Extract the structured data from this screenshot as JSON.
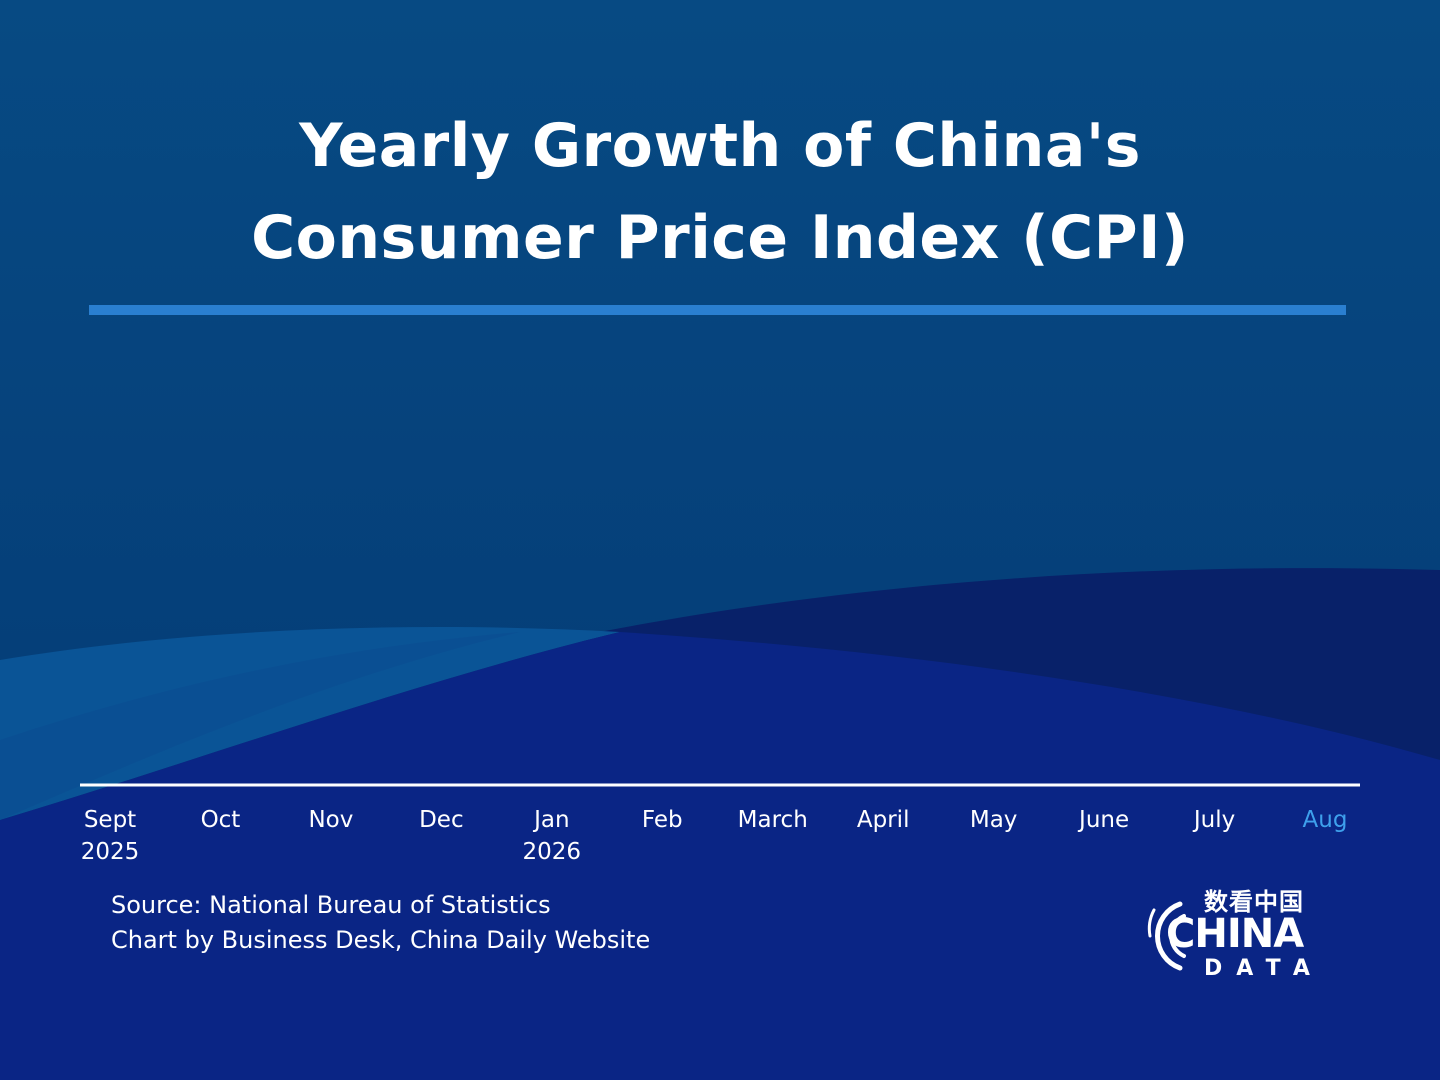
{
  "title": {
    "line1": "Yearly Growth of China's",
    "line2": "Consumer Price Index (CPI)"
  },
  "colors": {
    "background_top": "#074a83",
    "background_bottom": "#0a2585",
    "title_rule": "#2a7fd0",
    "axis_line": "#ffffff",
    "tick_label": "#ffffff",
    "tick_label_highlight": "#3ea0ec"
  },
  "chart_data": {
    "type": "line",
    "title": "Yearly Growth of China's Consumer Price Index (CPI)",
    "xlabel": "",
    "ylabel": "",
    "categories": [
      [
        "Sept",
        "2025"
      ],
      [
        "Oct"
      ],
      [
        "Nov"
      ],
      [
        "Dec"
      ],
      [
        "Jan",
        "2026"
      ],
      [
        "Feb"
      ],
      [
        "March"
      ],
      [
        "April"
      ],
      [
        "May"
      ],
      [
        "June"
      ],
      [
        "July"
      ],
      [
        "Aug"
      ]
    ],
    "highlighted_category": "Aug",
    "series": [],
    "grid": false,
    "legend": "none"
  },
  "source": {
    "line1": "Source: National Bureau of Statistics",
    "line2": "Chart by Business Desk, China Daily Website"
  },
  "logo": {
    "chinese": "数看中国",
    "word": "CHINA",
    "sub": "DATA"
  }
}
